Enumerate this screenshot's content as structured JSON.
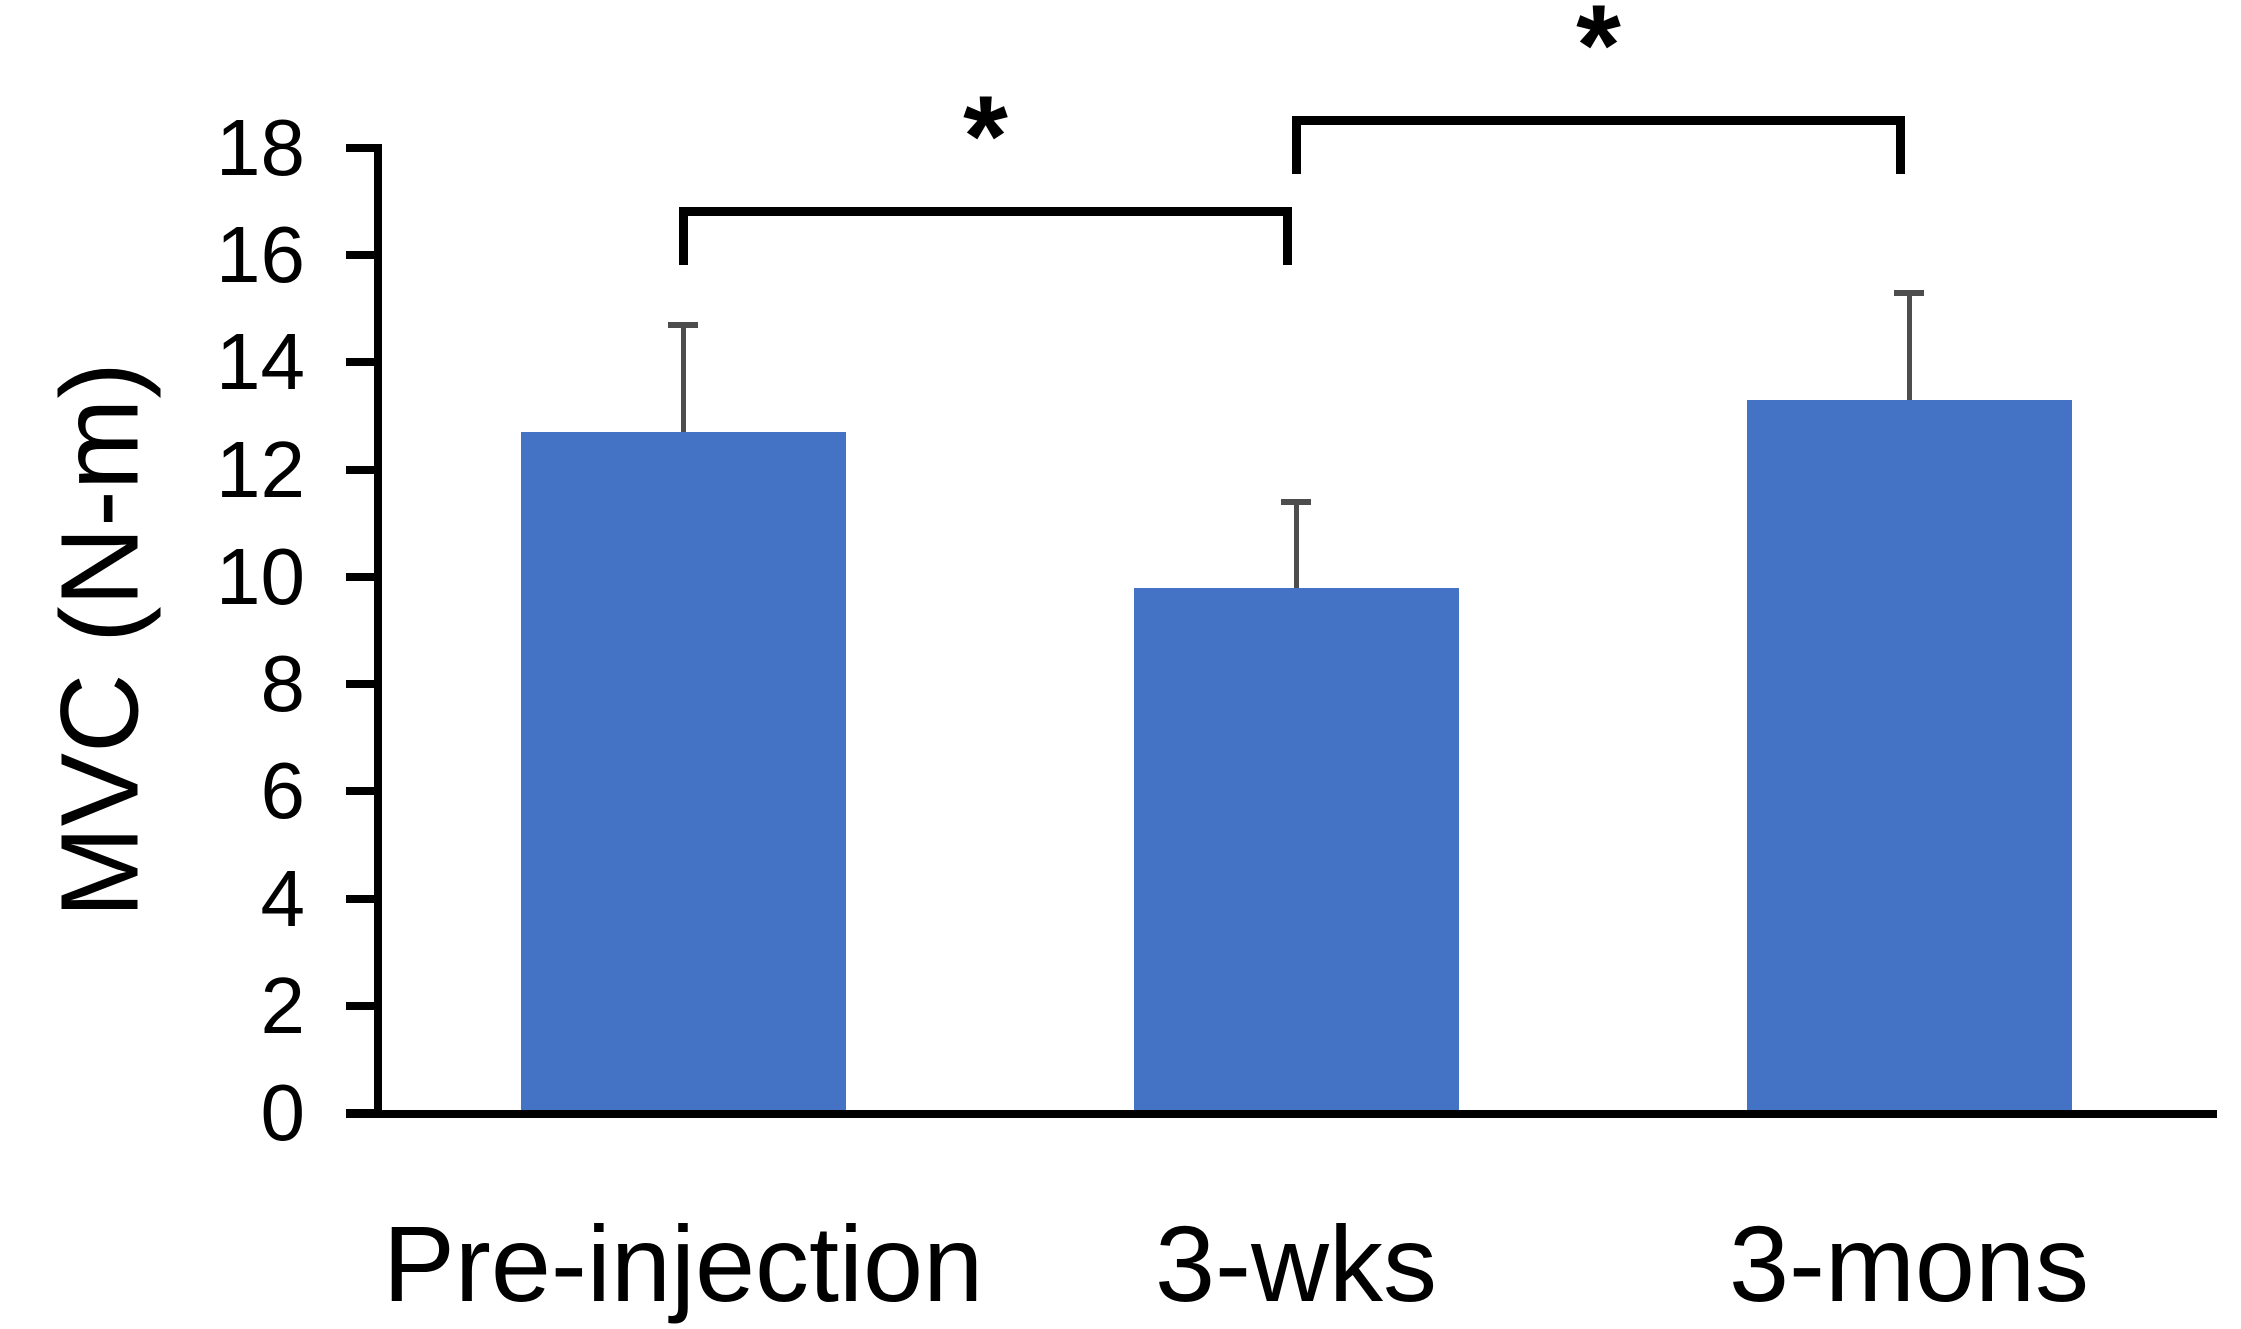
{
  "figure": {
    "background": "#ffffff"
  },
  "chart_data": {
    "type": "bar",
    "title": "",
    "ylabel": "MVC (N-m)",
    "xlabel": "",
    "categories": [
      "Pre-injection",
      "3-wks",
      "3-mons"
    ],
    "values": [
      12.7,
      9.8,
      13.3
    ],
    "errors_plus": [
      2.0,
      1.6,
      2.0
    ],
    "ylim": [
      0,
      18
    ],
    "yticks": [
      0,
      2,
      4,
      6,
      8,
      10,
      12,
      14,
      16,
      18
    ],
    "grid": "off",
    "legend": "none",
    "bar_color": "#4472C4",
    "error_bar_color": "#4d4d4d",
    "axis_color": "#000000",
    "text_color": "#000000",
    "significance_brackets": [
      {
        "from": "Pre-injection",
        "to": "3-wks",
        "label": "*",
        "bar_y": 16.9
      },
      {
        "from": "3-wks",
        "to": "3-mons",
        "label": "*",
        "bar_y": 18.6
      }
    ]
  }
}
